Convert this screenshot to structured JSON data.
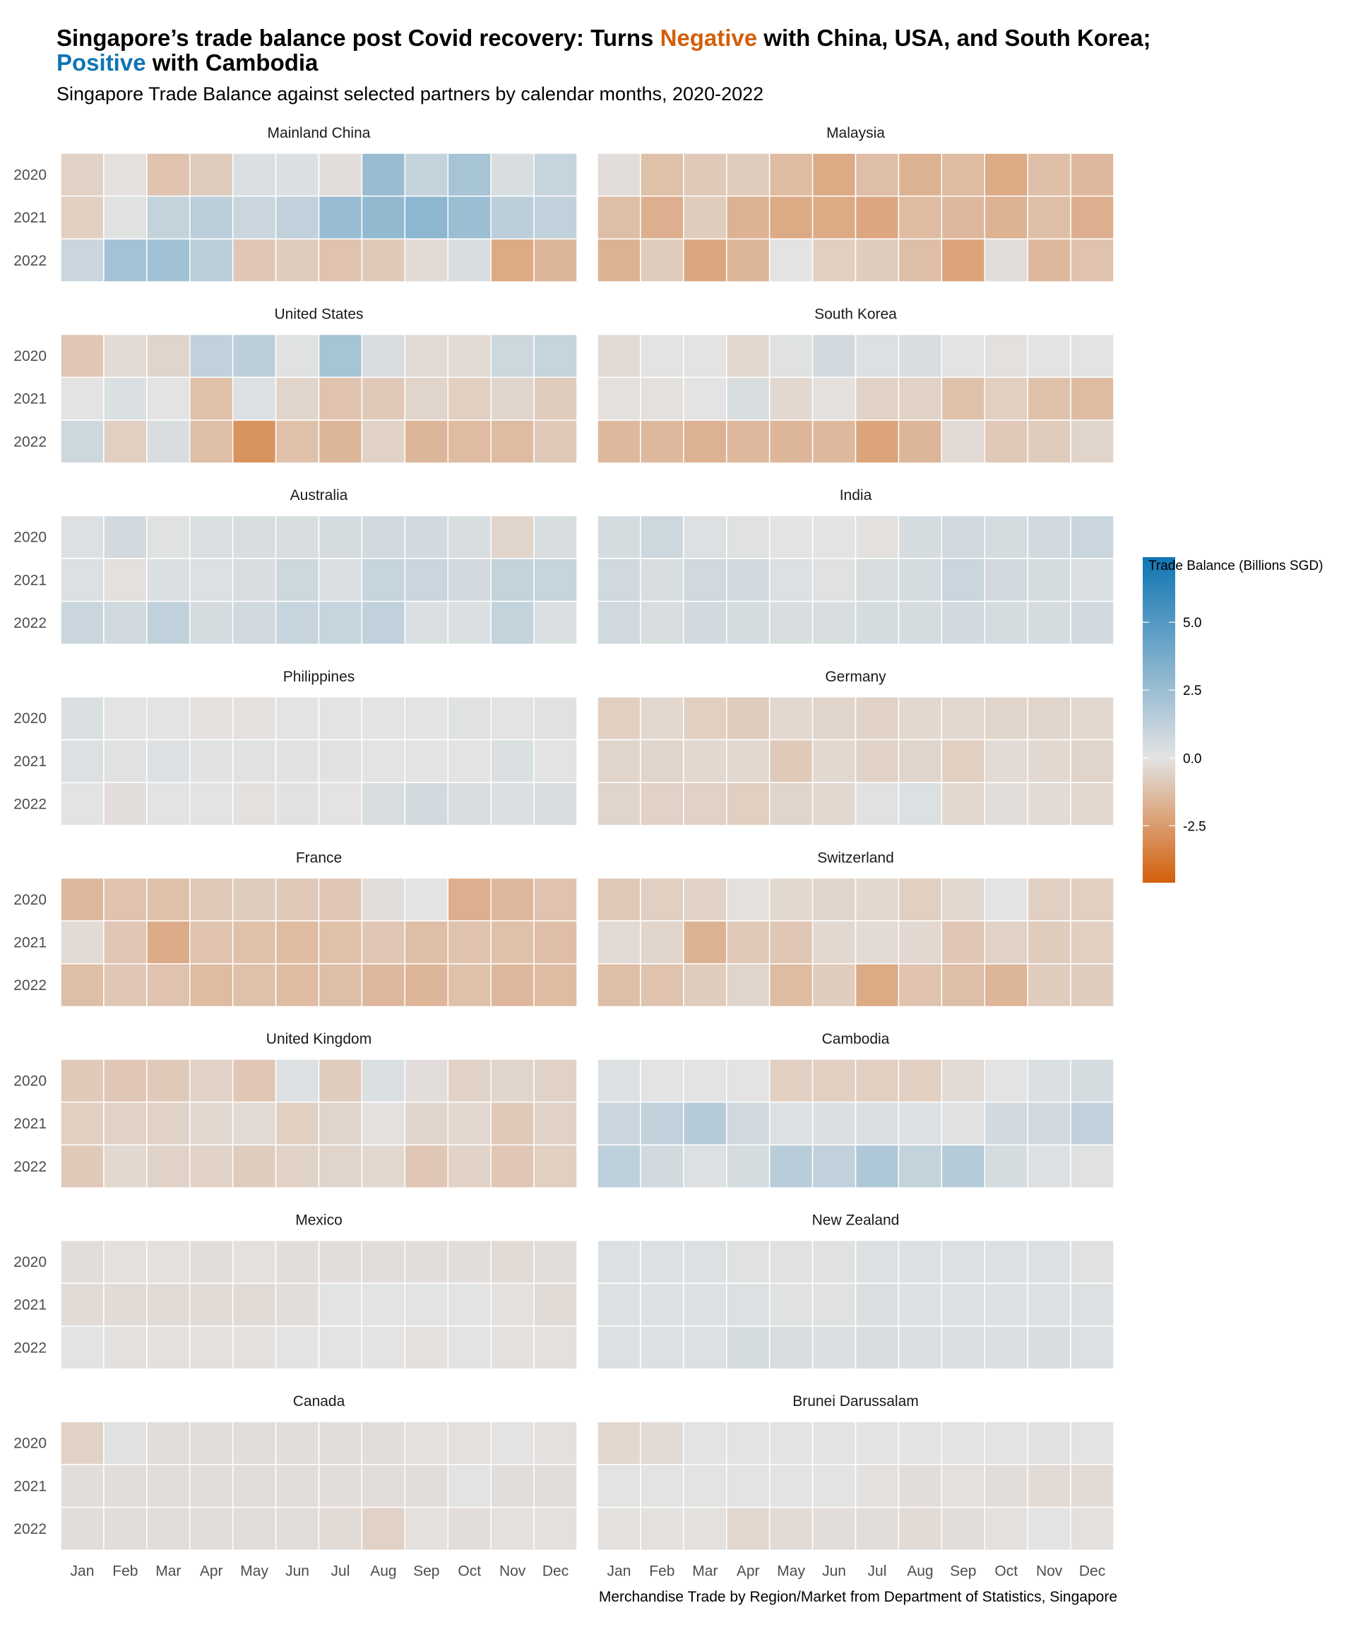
{
  "title": {
    "part1": "Singapore’s trade balance post Covid recovery: Turns ",
    "negative_word": "Negative",
    "part2": " with China, USA, and South Korea;",
    "positive_word": "Positive",
    "part3": " with Cambodia"
  },
  "subtitle": "Singapore Trade Balance against selected partners by calendar months, 2020-2022",
  "caption": "Merchandise Trade by Region/Market from Department of Statistics, Singapore",
  "colors": {
    "negative": "#d35f0a",
    "neutral": "#e3e3e3",
    "positive": "#0f75b3"
  },
  "chart_data": {
    "type": "heatmap",
    "title": "Singapore’s trade balance post Covid recovery",
    "xlabel": "",
    "ylabel": "",
    "x_categories": [
      "Jan",
      "Feb",
      "Mar",
      "Apr",
      "May",
      "Jun",
      "Jul",
      "Aug",
      "Sep",
      "Oct",
      "Nov",
      "Dec"
    ],
    "y_categories": [
      "2020",
      "2021",
      "2022"
    ],
    "legend": {
      "title": "Trade Balance (Billions SGD)",
      "ticks": [
        5.0,
        2.5,
        0.0,
        -2.5
      ],
      "tick_labels": [
        "5.0",
        "2.5",
        "0.0",
        "-2.5"
      ],
      "range": [
        -4.6,
        7.4
      ],
      "placement": "right"
    },
    "panels": [
      {
        "name": "Mainland China",
        "values": [
          [
            -0.6,
            -0.1,
            -1.1,
            -0.8,
            0.3,
            0.3,
            -0.2,
            2.6,
            1.1,
            2.1,
            0.4,
            1.0
          ],
          [
            -0.7,
            0.1,
            1.1,
            1.4,
            0.9,
            1.2,
            2.6,
            2.8,
            3.0,
            2.5,
            1.4,
            1.2
          ],
          [
            0.9,
            2.2,
            2.3,
            1.4,
            -1.0,
            -0.8,
            -1.1,
            -0.9,
            -0.3,
            0.4,
            -2.0,
            -1.6
          ]
        ]
      },
      {
        "name": "Malaysia",
        "values": [
          [
            -0.2,
            -1.2,
            -0.9,
            -0.8,
            -1.4,
            -2.0,
            -1.3,
            -1.7,
            -1.4,
            -2.0,
            -1.3,
            -1.5
          ],
          [
            -1.3,
            -1.8,
            -0.8,
            -1.7,
            -2.0,
            -2.0,
            -2.1,
            -1.4,
            -1.5,
            -1.7,
            -1.3,
            -1.8
          ],
          [
            -1.7,
            -0.8,
            -2.1,
            -1.6,
            0.0,
            -0.7,
            -0.8,
            -1.3,
            -2.2,
            -0.2,
            -1.5,
            -1.1
          ]
        ]
      },
      {
        "name": "United States",
        "values": [
          [
            -1.0,
            -0.3,
            -0.5,
            1.2,
            1.4,
            0.1,
            2.1,
            0.4,
            -0.3,
            -0.3,
            0.8,
            1.0
          ],
          [
            0.0,
            0.3,
            0.0,
            -1.2,
            0.2,
            -0.5,
            -1.1,
            -0.9,
            -0.5,
            -0.7,
            -0.5,
            -0.8
          ],
          [
            0.8,
            -0.7,
            0.4,
            -1.3,
            -2.8,
            -1.2,
            -1.6,
            -0.6,
            -1.6,
            -1.4,
            -1.4,
            -0.9
          ]
        ]
      },
      {
        "name": "South Korea",
        "values": [
          [
            -0.3,
            0.0,
            0.0,
            -0.4,
            0.1,
            0.6,
            0.2,
            0.4,
            0.0,
            -0.1,
            0.0,
            0.0
          ],
          [
            -0.1,
            -0.1,
            0.0,
            0.4,
            -0.4,
            -0.1,
            -0.6,
            -0.6,
            -1.2,
            -0.7,
            -1.2,
            -1.4
          ],
          [
            -1.5,
            -1.5,
            -1.7,
            -1.5,
            -1.6,
            -1.5,
            -2.2,
            -1.6,
            -0.3,
            -0.9,
            -0.8,
            -0.5
          ]
        ]
      },
      {
        "name": "Australia",
        "values": [
          [
            0.2,
            0.6,
            0.1,
            0.3,
            0.4,
            0.4,
            0.5,
            0.6,
            0.6,
            0.4,
            -0.5,
            0.4
          ],
          [
            0.2,
            -0.1,
            0.3,
            0.2,
            0.4,
            0.8,
            0.3,
            1.0,
            0.9,
            0.6,
            1.1,
            1.0
          ],
          [
            0.9,
            0.7,
            1.2,
            0.5,
            0.7,
            1.0,
            1.0,
            1.2,
            0.3,
            0.3,
            1.1,
            0.3
          ]
        ]
      },
      {
        "name": "India",
        "values": [
          [
            0.5,
            0.8,
            0.2,
            0.1,
            0.0,
            0.0,
            -0.1,
            0.5,
            0.7,
            0.5,
            0.6,
            0.9
          ],
          [
            0.7,
            0.4,
            0.7,
            0.6,
            0.2,
            0.1,
            0.4,
            0.5,
            0.9,
            0.6,
            0.5,
            0.3
          ],
          [
            0.7,
            0.4,
            0.6,
            0.5,
            0.4,
            0.4,
            0.5,
            0.5,
            0.6,
            0.5,
            0.5,
            0.6
          ]
        ]
      },
      {
        "name": "Philippines",
        "values": [
          [
            0.3,
            0.0,
            0.0,
            -0.1,
            -0.1,
            0.0,
            0.0,
            0.0,
            0.0,
            0.1,
            0.0,
            0.1
          ],
          [
            0.2,
            0.1,
            0.2,
            0.1,
            0.1,
            0.1,
            0.1,
            0.0,
            0.0,
            0.0,
            0.3,
            0.0
          ],
          [
            0.0,
            -0.2,
            0.0,
            0.0,
            -0.1,
            0.1,
            0.0,
            0.4,
            0.6,
            0.4,
            0.3,
            0.4
          ]
        ]
      },
      {
        "name": "Germany",
        "values": [
          [
            -0.7,
            -0.4,
            -0.7,
            -0.8,
            -0.4,
            -0.5,
            -0.6,
            -0.4,
            -0.4,
            -0.5,
            -0.5,
            -0.4
          ],
          [
            -0.5,
            -0.5,
            -0.4,
            -0.4,
            -0.9,
            -0.4,
            -0.6,
            -0.5,
            -0.7,
            -0.3,
            -0.4,
            -0.5
          ],
          [
            -0.5,
            -0.6,
            -0.6,
            -0.7,
            -0.5,
            -0.4,
            0.1,
            0.2,
            -0.4,
            -0.2,
            -0.3,
            -0.4
          ]
        ]
      },
      {
        "name": "France",
        "values": [
          [
            -1.5,
            -1.1,
            -1.2,
            -0.9,
            -0.8,
            -0.9,
            -1.0,
            -0.2,
            0.0,
            -1.8,
            -1.5,
            -1.1
          ],
          [
            -0.3,
            -1.0,
            -1.9,
            -1.1,
            -1.2,
            -1.4,
            -1.2,
            -1.0,
            -1.3,
            -1.1,
            -1.2,
            -1.3
          ],
          [
            -1.3,
            -1.0,
            -1.1,
            -1.4,
            -1.2,
            -1.4,
            -1.3,
            -1.5,
            -1.6,
            -1.2,
            -1.5,
            -1.4
          ]
        ]
      },
      {
        "name": "Switzerland",
        "values": [
          [
            -0.9,
            -0.7,
            -0.6,
            -0.1,
            -0.4,
            -0.5,
            -0.4,
            -0.7,
            -0.4,
            0.0,
            -0.7,
            -0.7
          ],
          [
            -0.3,
            -0.5,
            -1.7,
            -0.9,
            -1.0,
            -0.4,
            -0.3,
            -0.4,
            -1.0,
            -0.6,
            -0.8,
            -0.7
          ],
          [
            -1.3,
            -1.1,
            -0.8,
            -0.5,
            -1.4,
            -0.8,
            -2.0,
            -1.1,
            -1.3,
            -1.6,
            -0.8,
            -0.8
          ]
        ]
      },
      {
        "name": "United Kingdom",
        "values": [
          [
            -0.9,
            -1.0,
            -0.9,
            -0.6,
            -1.0,
            0.2,
            -0.8,
            0.3,
            -0.2,
            -0.6,
            -0.5,
            -0.6
          ],
          [
            -0.7,
            -0.6,
            -0.6,
            -0.4,
            -0.3,
            -0.7,
            -0.5,
            -0.1,
            -0.5,
            -0.4,
            -0.9,
            -0.6
          ],
          [
            -0.9,
            -0.4,
            -0.6,
            -0.6,
            -0.8,
            -0.6,
            -0.5,
            -0.4,
            -1.0,
            -0.6,
            -1.0,
            -0.7
          ]
        ]
      },
      {
        "name": "Cambodia",
        "values": [
          [
            0.2,
            0.0,
            0.0,
            0.0,
            -0.7,
            -0.7,
            -0.7,
            -0.7,
            -0.3,
            0.0,
            0.3,
            0.5
          ],
          [
            0.9,
            1.2,
            1.6,
            0.7,
            0.2,
            0.3,
            0.3,
            0.2,
            0.1,
            0.6,
            0.7,
            1.2
          ],
          [
            1.3,
            0.6,
            0.2,
            0.5,
            1.5,
            1.2,
            1.8,
            1.1,
            1.6,
            0.5,
            0.2,
            0.1
          ]
        ]
      },
      {
        "name": "Mexico",
        "values": [
          [
            -0.2,
            -0.1,
            -0.1,
            -0.2,
            -0.1,
            -0.2,
            -0.2,
            -0.2,
            -0.2,
            -0.2,
            -0.3,
            -0.2
          ],
          [
            -0.3,
            -0.3,
            -0.3,
            -0.3,
            -0.3,
            -0.2,
            0.0,
            0.0,
            0.0,
            0.0,
            -0.1,
            -0.3
          ],
          [
            0.0,
            -0.1,
            -0.1,
            -0.1,
            -0.1,
            0.0,
            0.0,
            0.0,
            -0.1,
            0.0,
            -0.1,
            -0.1
          ]
        ]
      },
      {
        "name": "New Zealand",
        "values": [
          [
            0.2,
            0.2,
            0.2,
            0.1,
            0.1,
            0.1,
            0.2,
            0.2,
            0.2,
            0.2,
            0.2,
            0.1
          ],
          [
            0.2,
            0.2,
            0.2,
            0.2,
            0.1,
            0.1,
            0.3,
            0.2,
            0.2,
            0.2,
            0.2,
            0.2
          ],
          [
            0.2,
            0.2,
            0.2,
            0.5,
            0.4,
            0.3,
            0.4,
            0.3,
            0.3,
            0.3,
            0.4,
            0.2
          ]
        ]
      },
      {
        "name": "Canada",
        "values": [
          [
            -0.6,
            0.1,
            -0.2,
            -0.2,
            -0.2,
            -0.2,
            -0.2,
            -0.2,
            -0.1,
            -0.1,
            0.0,
            -0.1
          ],
          [
            -0.2,
            -0.2,
            -0.2,
            -0.2,
            -0.2,
            -0.2,
            -0.2,
            -0.2,
            -0.2,
            0.0,
            -0.2,
            -0.2
          ],
          [
            -0.2,
            -0.2,
            -0.2,
            -0.2,
            -0.2,
            -0.2,
            -0.3,
            -0.6,
            -0.1,
            -0.2,
            -0.1,
            -0.1
          ]
        ]
      },
      {
        "name": "Brunei Darussalam",
        "values": [
          [
            -0.4,
            -0.3,
            0.0,
            0.0,
            0.0,
            0.0,
            0.0,
            0.0,
            0.0,
            0.0,
            0.1,
            0.0
          ],
          [
            0.0,
            0.0,
            0.0,
            0.0,
            0.0,
            0.0,
            -0.1,
            -0.2,
            -0.1,
            -0.2,
            -0.3,
            -0.3
          ],
          [
            -0.1,
            -0.1,
            -0.1,
            -0.4,
            -0.3,
            -0.2,
            -0.2,
            -0.3,
            -0.2,
            -0.1,
            0.0,
            -0.1
          ]
        ]
      }
    ]
  }
}
